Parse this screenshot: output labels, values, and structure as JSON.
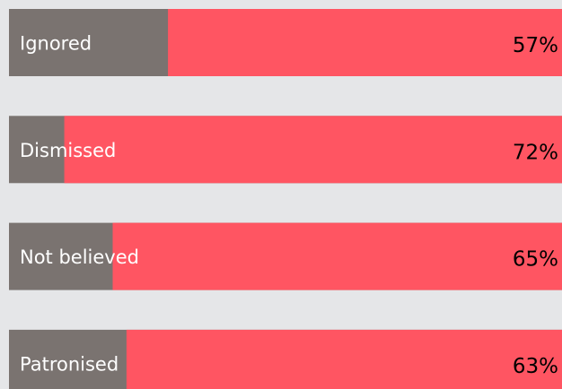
{
  "chart_data": {
    "type": "bar",
    "orientation": "horizontal",
    "categories": [
      "Ignored",
      "Dismissed",
      "Not believed",
      "Patronised"
    ],
    "values": [
      57,
      72,
      65,
      63
    ],
    "value_labels": [
      "57%",
      "72%",
      "65%",
      "63%"
    ],
    "color": "#ff5562",
    "background_color": "#7a7370",
    "xlim": [
      0,
      80
    ]
  }
}
